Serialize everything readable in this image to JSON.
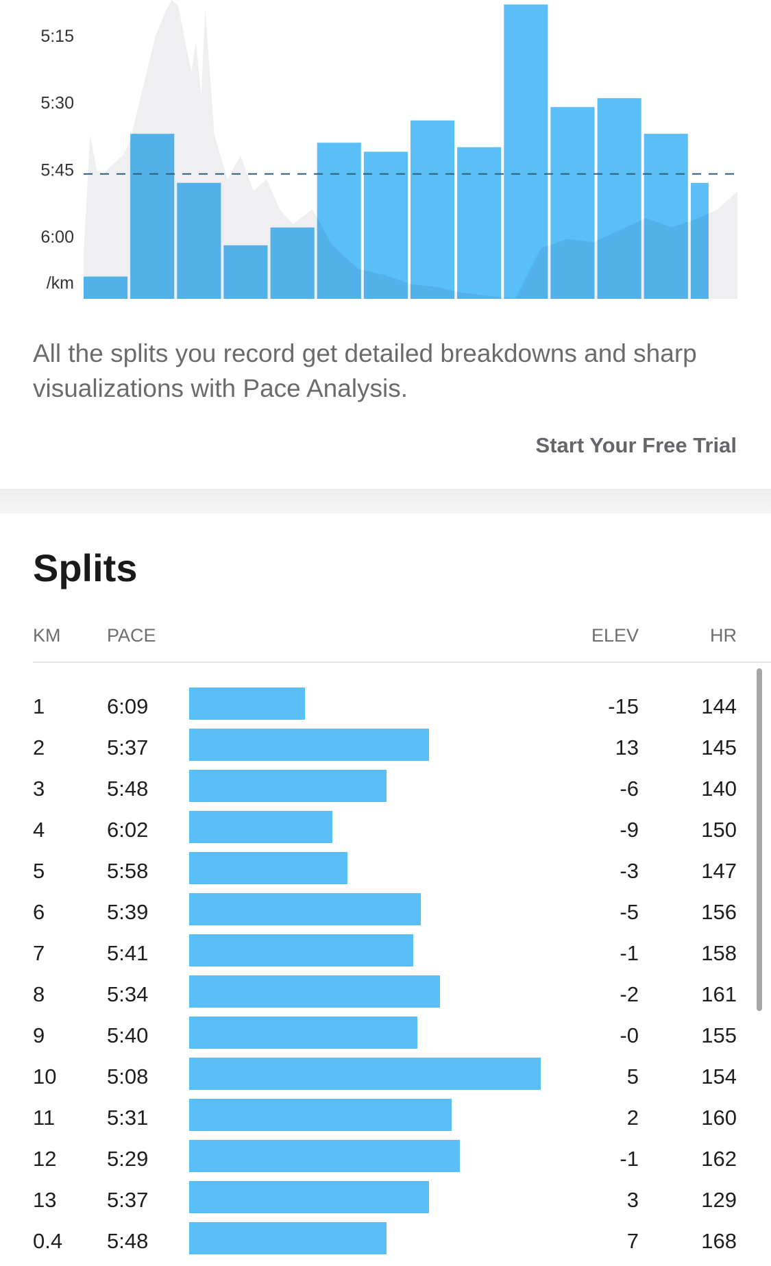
{
  "chart_data": {
    "type": "bar",
    "y_tick_labels": [
      "5:15",
      "5:30",
      "5:45",
      "6:00",
      "/km"
    ],
    "y_ticks_sec": [
      315,
      330,
      345,
      360
    ],
    "ylim_sec": [
      307,
      374
    ],
    "average_pace_sec": 346,
    "categories": [
      "1",
      "2",
      "3",
      "4",
      "5",
      "6",
      "7",
      "8",
      "9",
      "10",
      "11",
      "12",
      "13",
      "0.4"
    ],
    "values_sec": [
      369,
      337,
      348,
      362,
      358,
      339,
      341,
      334,
      340,
      308,
      331,
      329,
      337,
      348
    ],
    "bar_color": "#5bbff7",
    "average_line_color": "#2f5f78",
    "elevation_profile_color": "#efeff1",
    "elevation_profile": [
      [
        0.0,
        0.15
      ],
      [
        0.01,
        0.55
      ],
      [
        0.02,
        0.43
      ],
      [
        0.03,
        0.42
      ],
      [
        0.06,
        0.48
      ],
      [
        0.07,
        0.52
      ],
      [
        0.09,
        0.7
      ],
      [
        0.11,
        0.88
      ],
      [
        0.125,
        0.96
      ],
      [
        0.135,
        1.0
      ],
      [
        0.145,
        0.98
      ],
      [
        0.158,
        0.83
      ],
      [
        0.165,
        0.76
      ],
      [
        0.172,
        0.86
      ],
      [
        0.18,
        0.68
      ],
      [
        0.186,
        0.97
      ],
      [
        0.2,
        0.55
      ],
      [
        0.22,
        0.4
      ],
      [
        0.24,
        0.48
      ],
      [
        0.26,
        0.36
      ],
      [
        0.28,
        0.4
      ],
      [
        0.3,
        0.3
      ],
      [
        0.32,
        0.25
      ],
      [
        0.35,
        0.3
      ],
      [
        0.38,
        0.18
      ],
      [
        0.42,
        0.1
      ],
      [
        0.46,
        0.08
      ],
      [
        0.5,
        0.05
      ],
      [
        0.54,
        0.04
      ],
      [
        0.58,
        0.02
      ],
      [
        0.62,
        0.01
      ],
      [
        0.66,
        0.0
      ],
      [
        0.7,
        0.17
      ],
      [
        0.74,
        0.2
      ],
      [
        0.78,
        0.19
      ],
      [
        0.82,
        0.23
      ],
      [
        0.86,
        0.27
      ],
      [
        0.9,
        0.24
      ],
      [
        0.94,
        0.27
      ],
      [
        0.97,
        0.3
      ],
      [
        1.0,
        0.36
      ]
    ]
  },
  "promo": {
    "text": "All the splits you record get detailed breakdowns and sharp visualizations with Pace Analysis.",
    "cta": "Start Your Free Trial"
  },
  "splits": {
    "title": "Splits",
    "headers": {
      "km": "KM",
      "pace": "PACE",
      "elev": "ELEV",
      "hr": "HR"
    },
    "bar_min_sec": 308,
    "bar_max_sec": 369,
    "rows": [
      {
        "km": "1",
        "pace": "6:09",
        "pace_sec": 369,
        "elev": "-15",
        "hr": "144"
      },
      {
        "km": "2",
        "pace": "5:37",
        "pace_sec": 337,
        "elev": "13",
        "hr": "145"
      },
      {
        "km": "3",
        "pace": "5:48",
        "pace_sec": 348,
        "elev": "-6",
        "hr": "140"
      },
      {
        "km": "4",
        "pace": "6:02",
        "pace_sec": 362,
        "elev": "-9",
        "hr": "150"
      },
      {
        "km": "5",
        "pace": "5:58",
        "pace_sec": 358,
        "elev": "-3",
        "hr": "147"
      },
      {
        "km": "6",
        "pace": "5:39",
        "pace_sec": 339,
        "elev": "-5",
        "hr": "156"
      },
      {
        "km": "7",
        "pace": "5:41",
        "pace_sec": 341,
        "elev": "-1",
        "hr": "158"
      },
      {
        "km": "8",
        "pace": "5:34",
        "pace_sec": 334,
        "elev": "-2",
        "hr": "161"
      },
      {
        "km": "9",
        "pace": "5:40",
        "pace_sec": 340,
        "elev": "-0",
        "hr": "155"
      },
      {
        "km": "10",
        "pace": "5:08",
        "pace_sec": 308,
        "elev": "5",
        "hr": "154"
      },
      {
        "km": "11",
        "pace": "5:31",
        "pace_sec": 331,
        "elev": "2",
        "hr": "160"
      },
      {
        "km": "12",
        "pace": "5:29",
        "pace_sec": 329,
        "elev": "-1",
        "hr": "162"
      },
      {
        "km": "13",
        "pace": "5:37",
        "pace_sec": 337,
        "elev": "3",
        "hr": "129"
      },
      {
        "km": "0.4",
        "pace": "5:48",
        "pace_sec": 348,
        "elev": "7",
        "hr": "168"
      }
    ]
  }
}
